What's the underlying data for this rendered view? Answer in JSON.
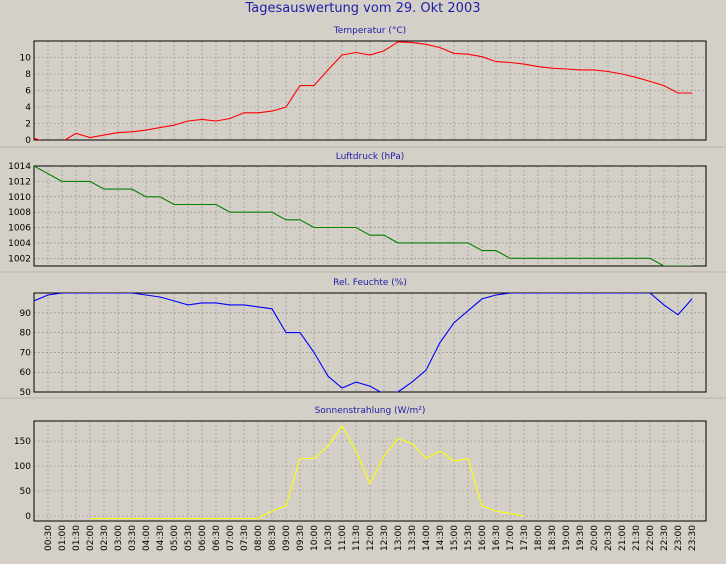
{
  "title": "Tagesauswertung vom 29. Okt 2003",
  "x_labels": [
    "00:30",
    "01:00",
    "01:30",
    "02:00",
    "02:30",
    "03:00",
    "03:30",
    "04:00",
    "04:30",
    "05:00",
    "05:30",
    "06:00",
    "06:30",
    "07:00",
    "07:30",
    "08:00",
    "08:30",
    "09:00",
    "09:30",
    "10:00",
    "10:30",
    "11:00",
    "11:30",
    "12:00",
    "12:30",
    "13:00",
    "13:30",
    "14:00",
    "14:30",
    "15:00",
    "15:30",
    "16:00",
    "16:30",
    "17:00",
    "17:30",
    "18:00",
    "18:30",
    "19:00",
    "19:30",
    "20:00",
    "20:30",
    "21:00",
    "21:30",
    "22:00",
    "22:30",
    "23:00",
    "23:30"
  ],
  "chart_data": [
    {
      "type": "line",
      "title": "Temperatur (°C)",
      "color": "#ff0000",
      "ylim": [
        0,
        12
      ],
      "yticks": [
        0,
        2,
        4,
        6,
        8,
        10
      ],
      "x": [
        "00:00",
        "00:30",
        "01:00",
        "01:30",
        "02:00",
        "02:30",
        "03:00",
        "03:30",
        "04:00",
        "04:30",
        "05:00",
        "05:30",
        "06:00",
        "06:30",
        "07:00",
        "07:30",
        "08:00",
        "08:30",
        "09:00",
        "09:30",
        "10:00",
        "10:30",
        "11:00",
        "11:30",
        "12:00",
        "12:30",
        "13:00",
        "13:30",
        "14:00",
        "14:30",
        "15:00",
        "15:30",
        "16:00",
        "16:30",
        "17:00",
        "17:30",
        "18:00",
        "18:30",
        "19:00",
        "19:30",
        "20:00",
        "20:30",
        "21:00",
        "21:30",
        "22:00",
        "22:30",
        "23:00",
        "23:30"
      ],
      "values": [
        0.2,
        -0.3,
        -0.2,
        0.8,
        0.3,
        0.6,
        0.9,
        1.0,
        1.2,
        1.5,
        1.8,
        2.3,
        2.5,
        2.3,
        2.6,
        3.3,
        3.3,
        3.5,
        4.0,
        6.6,
        6.6,
        8.5,
        10.3,
        10.6,
        10.3,
        10.8,
        11.9,
        11.8,
        11.6,
        11.2,
        10.5,
        10.4,
        10.1,
        9.5,
        9.4,
        9.2,
        8.9,
        8.7,
        8.6,
        8.5,
        8.5,
        8.3,
        8.0,
        7.6,
        7.1,
        6.6,
        5.7,
        5.7
      ]
    },
    {
      "type": "line",
      "title": "Luftdruck (hPa)",
      "color": "#008000",
      "ylim": [
        1001,
        1014
      ],
      "yticks": [
        1002,
        1004,
        1006,
        1008,
        1010,
        1012,
        1014
      ],
      "x": [
        "00:00",
        "00:30",
        "01:00",
        "01:30",
        "02:00",
        "02:30",
        "03:00",
        "03:30",
        "04:00",
        "04:30",
        "05:00",
        "05:30",
        "06:00",
        "06:30",
        "07:00",
        "07:30",
        "08:00",
        "08:30",
        "09:00",
        "09:30",
        "10:00",
        "10:30",
        "11:00",
        "11:30",
        "12:00",
        "12:30",
        "13:00",
        "13:30",
        "14:00",
        "14:30",
        "15:00",
        "15:30",
        "16:00",
        "16:30",
        "17:00",
        "17:30",
        "18:00",
        "18:30",
        "19:00",
        "19:30",
        "20:00",
        "20:30",
        "21:00",
        "21:30",
        "22:00",
        "22:30",
        "23:00",
        "23:30"
      ],
      "values": [
        1014,
        1013,
        1012,
        1012,
        1012,
        1011,
        1011,
        1011,
        1010,
        1010,
        1009,
        1009,
        1009,
        1009,
        1008,
        1008,
        1008,
        1008,
        1007,
        1007,
        1006,
        1006,
        1006,
        1006,
        1005,
        1005,
        1004,
        1004,
        1004,
        1004,
        1004,
        1004,
        1003,
        1003,
        1002,
        1002,
        1002,
        1002,
        1002,
        1002,
        1002,
        1002,
        1002,
        1002,
        1002,
        1001,
        1001,
        1001
      ]
    },
    {
      "type": "line",
      "title": "Rel. Feuchte (%)",
      "color": "#0000ff",
      "ylim": [
        50,
        100
      ],
      "yticks": [
        50,
        60,
        70,
        80,
        90
      ],
      "x": [
        "00:00",
        "00:30",
        "01:00",
        "01:30",
        "02:00",
        "02:30",
        "03:00",
        "03:30",
        "04:00",
        "04:30",
        "05:00",
        "05:30",
        "06:00",
        "06:30",
        "07:00",
        "07:30",
        "08:00",
        "08:30",
        "09:00",
        "09:30",
        "10:00",
        "10:30",
        "11:00",
        "11:30",
        "12:00",
        "12:30",
        "13:00",
        "13:30",
        "14:00",
        "14:30",
        "15:00",
        "15:30",
        "16:00",
        "16:30",
        "17:00",
        "17:30",
        "18:00",
        "18:30",
        "19:00",
        "19:30",
        "20:00",
        "20:30",
        "21:00",
        "21:30",
        "22:00",
        "22:30",
        "23:00",
        "23:30"
      ],
      "values": [
        96,
        99,
        100,
        100,
        100,
        100,
        100,
        100,
        99,
        98,
        96,
        94,
        95,
        95,
        94,
        94,
        93,
        92,
        80,
        80,
        70,
        58,
        52,
        55,
        53,
        49,
        50,
        55,
        61,
        75,
        85,
        91,
        97,
        99,
        100,
        100,
        100,
        100,
        100,
        100,
        100,
        100,
        100,
        100,
        100,
        94,
        89,
        97
      ]
    },
    {
      "type": "line",
      "title": "Sonnenstrahlung (W/m²)",
      "color": "#ffff00",
      "ylim": [
        -10,
        190
      ],
      "yticks": [
        0,
        50,
        100,
        150
      ],
      "x": [
        "00:00",
        "00:30",
        "01:00",
        "01:30",
        "02:00",
        "02:30",
        "03:00",
        "03:30",
        "04:00",
        "04:30",
        "05:00",
        "05:30",
        "06:00",
        "06:30",
        "07:00",
        "07:30",
        "08:00",
        "08:30",
        "09:00",
        "09:30",
        "10:00",
        "10:30",
        "11:00",
        "11:30",
        "12:00",
        "12:30",
        "13:00",
        "13:30",
        "14:00",
        "14:30",
        "15:00",
        "15:30",
        "16:00",
        "16:30",
        "17:00",
        "17:30"
      ],
      "values": [
        null,
        null,
        null,
        null,
        -5,
        -5,
        -5,
        -5,
        -5,
        -5,
        -5,
        -5,
        -5,
        -5,
        -5,
        -5,
        -5,
        10,
        20,
        115,
        115,
        140,
        180,
        130,
        65,
        120,
        155,
        145,
        115,
        130,
        110,
        115,
        20,
        10,
        5,
        0
      ]
    }
  ]
}
